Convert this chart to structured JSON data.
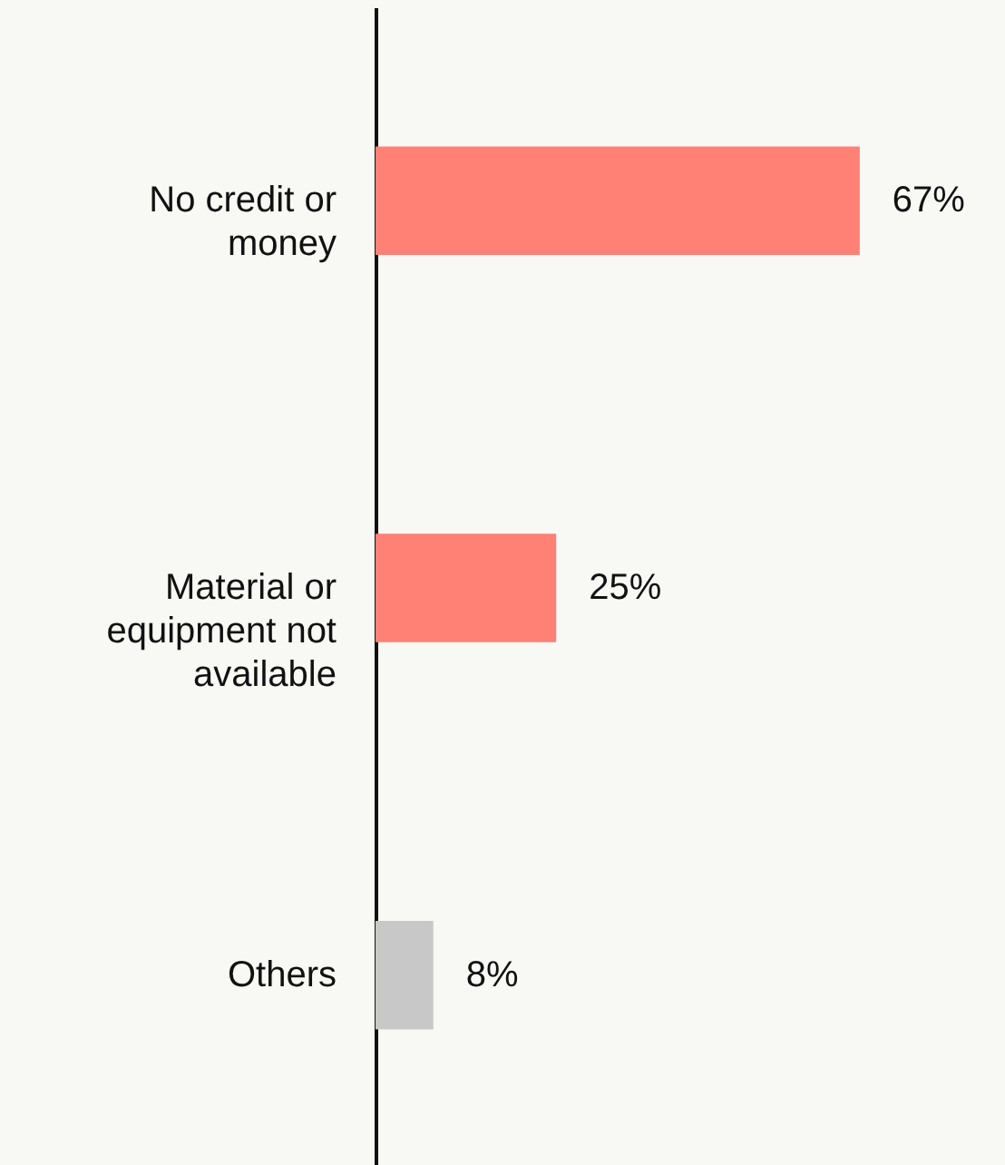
{
  "chart_data": {
    "type": "bar",
    "orientation": "horizontal",
    "categories": [
      "No credit or money",
      "Material or equipment not available",
      "Others"
    ],
    "values": [
      67,
      25,
      8
    ],
    "colors": [
      "#ff8075",
      "#ff8075",
      "#c8c8c8"
    ],
    "value_labels": [
      "67%",
      "25%",
      "8%"
    ]
  }
}
